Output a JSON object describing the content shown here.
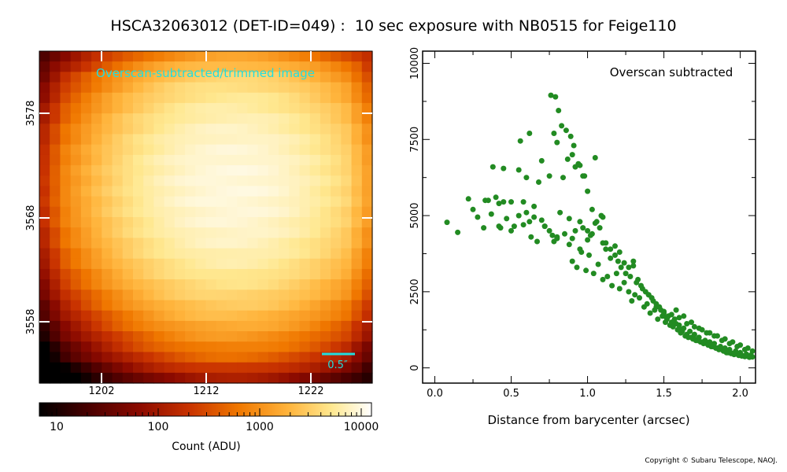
{
  "title": "HSCA32063012 (DET-ID=049) :  10 sec exposure with NB0515 for Feige110",
  "copyright": "Copyright © Subaru Telescope, NAOJ.",
  "image_panel": {
    "overlay_label": "Overscan-subtracted/trimmed image",
    "scale_bar_label": "0.5″",
    "x_ticks": [
      "1202",
      "1212",
      "1222"
    ],
    "y_ticks": [
      "3578",
      "3568",
      "3558"
    ],
    "colormap_colors": [
      "#000000",
      "#4a0000",
      "#8b0a00",
      "#c83200",
      "#f07800",
      "#ffb43c",
      "#ffe890",
      "#ffffff"
    ],
    "label_color": "#22dddd"
  },
  "colorbar": {
    "ticks": [
      "10",
      "100",
      "1000",
      "10000"
    ],
    "label": "Count (ADU)"
  },
  "chart_data": {
    "type": "scatter",
    "annotation": "Overscan subtracted",
    "xlabel": "Distance from barycenter (arcsec)",
    "ylabel": "",
    "xlim": [
      -0.08,
      2.1
    ],
    "ylim": [
      -500,
      10400
    ],
    "x_ticks": [
      "0.0",
      "0.5",
      "1.0",
      "1.5",
      "2.0"
    ],
    "y_ticks": [
      "0",
      "2500",
      "5000",
      "7500",
      "10000"
    ],
    "color": "#228b22",
    "series": [
      {
        "x": [
          0.08,
          0.15,
          0.22,
          0.25,
          0.28,
          0.32,
          0.33,
          0.35,
          0.37,
          0.4,
          0.42,
          0.43,
          0.45,
          0.47,
          0.5,
          0.52,
          0.55,
          0.58,
          0.6,
          0.62,
          0.63,
          0.65,
          0.67,
          0.7,
          0.72,
          0.75,
          0.77,
          0.78,
          0.8,
          0.82,
          0.85,
          0.88,
          0.9,
          0.92,
          0.95,
          0.97,
          1.0,
          1.02,
          1.05,
          1.08,
          1.1,
          0.38,
          0.45,
          0.55,
          0.56,
          0.6,
          0.62,
          0.68,
          0.7,
          0.75,
          0.78,
          0.8,
          0.84,
          0.87,
          0.9,
          0.92,
          0.95,
          0.98,
          1.05,
          0.42,
          0.5,
          0.58,
          0.65,
          0.72,
          0.8,
          0.88,
          0.95,
          1.0,
          1.03,
          1.1,
          1.12,
          1.15,
          1.18,
          1.2,
          1.22,
          1.25,
          1.28,
          1.3,
          1.32,
          1.35,
          1.38,
          1.4,
          1.42,
          1.45,
          1.48,
          1.5,
          1.52,
          1.55,
          1.58,
          1.6,
          1.62,
          1.65,
          1.68,
          1.7,
          1.72,
          1.75,
          1.78,
          1.8,
          1.82,
          1.85,
          1.88,
          1.9,
          1.92,
          1.95,
          1.98,
          2.0,
          2.02,
          2.05,
          2.08,
          0.9,
          0.93,
          0.96,
          0.99,
          1.01,
          1.04,
          1.07,
          1.1,
          1.13,
          1.16,
          1.19,
          1.21,
          1.24,
          1.27,
          1.29,
          1.31,
          1.34,
          1.37,
          1.39,
          1.41,
          1.44,
          1.46,
          1.49,
          1.51,
          1.54,
          1.56,
          1.59,
          1.61,
          1.64,
          1.66,
          1.69,
          1.71,
          1.74,
          1.76,
          1.79,
          1.81,
          1.84,
          1.86,
          1.89,
          1.91,
          1.94,
          1.96,
          1.99,
          2.01,
          2.03,
          2.06,
          2.09,
          0.76,
          0.79,
          0.81,
          0.83,
          0.86,
          0.89,
          0.91,
          0.94,
          0.97,
          1.0,
          1.03,
          1.06,
          1.09,
          1.12,
          1.15,
          1.18,
          1.21,
          1.24,
          1.27,
          1.3,
          1.33,
          1.36,
          1.4,
          1.43,
          1.47,
          1.5,
          1.53,
          1.57,
          1.6,
          1.63,
          1.67,
          1.7,
          1.73,
          1.77,
          1.8,
          1.83,
          1.87,
          1.9,
          1.93,
          1.97,
          2.0,
          2.04,
          2.07,
          1.45,
          1.5,
          1.55,
          1.6,
          1.65,
          1.7,
          1.75,
          1.8,
          1.85,
          1.9,
          1.95,
          2.0,
          2.05,
          1.58,
          1.63,
          1.68,
          1.73,
          1.78,
          1.83,
          1.88,
          1.93,
          1.98,
          2.03,
          2.08
        ],
        "y": [
          4780,
          4450,
          5550,
          5200,
          4950,
          4600,
          5500,
          5500,
          5050,
          5600,
          5400,
          4600,
          5450,
          4900,
          5450,
          4650,
          5000,
          5450,
          5100,
          4800,
          4300,
          5300,
          4150,
          4850,
          4650,
          4500,
          4350,
          4150,
          4300,
          5100,
          4400,
          4900,
          4250,
          4500,
          4800,
          4600,
          4500,
          4350,
          4750,
          4600,
          4950,
          6600,
          6550,
          6500,
          7450,
          6250,
          7700,
          6100,
          6800,
          6300,
          7700,
          7400,
          6250,
          6850,
          7000,
          6600,
          6650,
          6300,
          6900,
          4650,
          4500,
          4700,
          4950,
          4650,
          4250,
          4050,
          3900,
          4200,
          4400,
          4100,
          3900,
          3600,
          3700,
          3500,
          3300,
          3100,
          3000,
          3500,
          2800,
          2700,
          2500,
          2400,
          2300,
          2100,
          1900,
          1700,
          1600,
          1500,
          1450,
          1300,
          1200,
          1100,
          1000,
          950,
          900,
          850,
          800,
          750,
          700,
          650,
          600,
          550,
          500,
          480,
          450,
          420,
          400,
          380,
          360,
          3500,
          3300,
          3800,
          3200,
          3700,
          3100,
          3400,
          2900,
          3000,
          2700,
          3100,
          2600,
          2800,
          2500,
          2200,
          2400,
          2300,
          2000,
          2100,
          1800,
          1900,
          1600,
          1700,
          1500,
          1400,
          1350,
          1250,
          1150,
          1050,
          1000,
          950,
          900,
          850,
          800,
          750,
          700,
          650,
          600,
          550,
          500,
          470,
          440,
          410,
          390,
          370,
          350,
          330,
          8950,
          8900,
          8450,
          7950,
          7800,
          7600,
          7300,
          6700,
          6300,
          5800,
          5200,
          4800,
          5000,
          4100,
          3900,
          4000,
          3800,
          3450,
          3300,
          3350,
          2900,
          2600,
          2400,
          2200,
          2000,
          1800,
          1700,
          1600,
          1400,
          1300,
          1200,
          1100,
          1000,
          900,
          850,
          800,
          700,
          650,
          600,
          550,
          500,
          450,
          420,
          2000,
          1850,
          1750,
          1650,
          1450,
          1350,
          1250,
          1150,
          1050,
          950,
          850,
          750,
          650,
          1900,
          1700,
          1500,
          1300,
          1150,
          1050,
          900,
          800,
          700,
          600,
          550
        ]
      }
    ]
  }
}
